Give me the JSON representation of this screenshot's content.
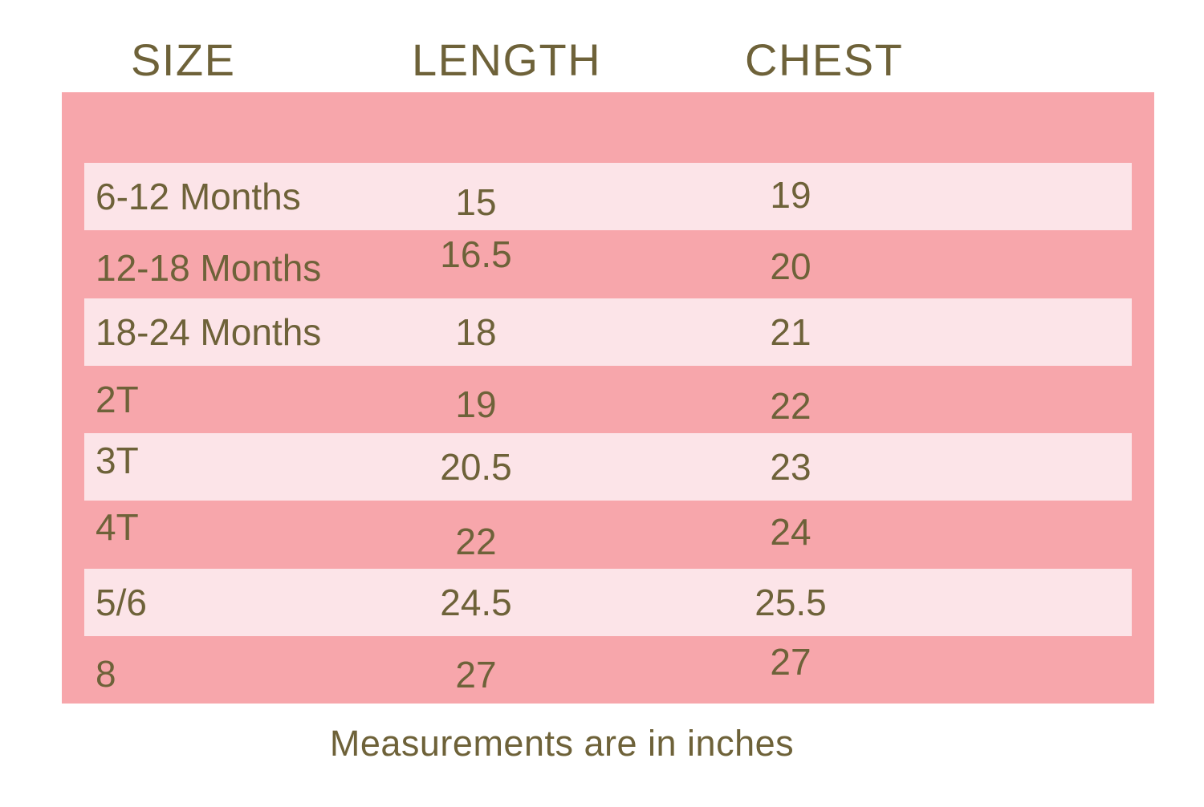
{
  "header": {
    "columns": [
      "SIZE",
      "LENGTH",
      "CHEST"
    ]
  },
  "table": {
    "rows": [
      {
        "size": "6-12 Months",
        "length": "15",
        "chest": "19"
      },
      {
        "size": "12-18 Months",
        "length": "16.5",
        "chest": "20"
      },
      {
        "size": "18-24 Months",
        "length": "18",
        "chest": "21"
      },
      {
        "size": "2T",
        "length": "19",
        "chest": "22"
      },
      {
        "size": "3T",
        "length": "20.5",
        "chest": "23"
      },
      {
        "size": "4T",
        "length": "22",
        "chest": "24"
      },
      {
        "size": "5/6",
        "length": "24.5",
        "chest": "25.5"
      },
      {
        "size": "8",
        "length": "27",
        "chest": "27"
      }
    ]
  },
  "footer": {
    "note": "Measurements are in inches"
  },
  "colors": {
    "panel_pink": "#f7a6ab",
    "row_light_pink": "#fce4e8",
    "text_olive": "#6e6239",
    "background": "#ffffff"
  },
  "chart_data": {
    "type": "table",
    "title": "Size chart",
    "columns": [
      "SIZE",
      "LENGTH",
      "CHEST"
    ],
    "rows": [
      [
        "6-12 Months",
        15,
        19
      ],
      [
        "12-18 Months",
        16.5,
        20
      ],
      [
        "18-24 Months",
        18,
        21
      ],
      [
        "2T",
        19,
        22
      ],
      [
        "3T",
        20.5,
        23
      ],
      [
        "4T",
        22,
        24
      ],
      [
        "5/6",
        24.5,
        25.5
      ],
      [
        "8",
        27,
        27
      ]
    ],
    "units": "inches"
  }
}
